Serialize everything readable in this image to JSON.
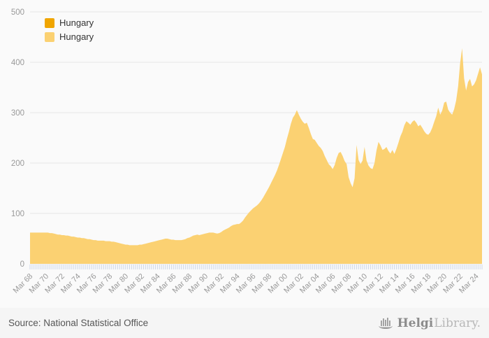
{
  "page": {
    "background": "#fafafa"
  },
  "legend": {
    "items": [
      {
        "label": "Hungary",
        "color": "#f0a500"
      },
      {
        "label": "Hungary",
        "color": "#fbd172"
      }
    ]
  },
  "footer": {
    "source": "Source: National Statistical Office",
    "brand_bold": "Helgi",
    "brand_light": "Library."
  },
  "chart_data": {
    "type": "area",
    "title": "",
    "xlabel": "",
    "ylabel": "",
    "frequency": "quarterly",
    "x_start": "Mar 1968",
    "x_end": "Dec 2024",
    "ylim": [
      0,
      500
    ],
    "y_ticks": [
      0,
      100,
      200,
      300,
      400,
      500
    ],
    "grid": "horizontal",
    "legend_position": "top-left",
    "x_tick_labels": [
      "Mar 68",
      "Mar 70",
      "Mar 72",
      "Mar 74",
      "Mar 76",
      "Mar 78",
      "Mar 80",
      "Mar 82",
      "Mar 84",
      "Mar 86",
      "Mar 88",
      "Mar 90",
      "Mar 92",
      "Mar 94",
      "Mar 96",
      "Mar 98",
      "Mar 00",
      "Mar 02",
      "Mar 04",
      "Mar 06",
      "Mar 08",
      "Mar 10",
      "Mar 12",
      "Mar 14",
      "Mar 16",
      "Mar 18",
      "Mar 20",
      "Mar 22",
      "Mar 24"
    ],
    "x_label_every_n_points": 8,
    "series": [
      {
        "name": "Hungary",
        "color": "#fbd172",
        "values": [
          62,
          62,
          62,
          62,
          62,
          62,
          62,
          62,
          62,
          62,
          61,
          61,
          60,
          59,
          58,
          58,
          57,
          57,
          56,
          56,
          55,
          54,
          54,
          53,
          52,
          52,
          51,
          51,
          50,
          49,
          49,
          48,
          47,
          47,
          46,
          46,
          46,
          46,
          45,
          45,
          45,
          44,
          44,
          43,
          42,
          41,
          40,
          39,
          38,
          38,
          37,
          37,
          37,
          37,
          37,
          38,
          38,
          39,
          40,
          41,
          42,
          43,
          44,
          45,
          46,
          47,
          48,
          49,
          50,
          50,
          49,
          48,
          48,
          47,
          47,
          47,
          47,
          48,
          49,
          51,
          52,
          54,
          56,
          57,
          58,
          57,
          58,
          59,
          60,
          61,
          62,
          62,
          62,
          61,
          60,
          61,
          63,
          66,
          68,
          70,
          72,
          75,
          77,
          78,
          79,
          79,
          82,
          86,
          92,
          97,
          102,
          106,
          110,
          113,
          116,
          120,
          125,
          131,
          138,
          145,
          152,
          160,
          168,
          176,
          185,
          196,
          208,
          220,
          232,
          248,
          262,
          278,
          290,
          296,
          305,
          296,
          288,
          282,
          278,
          280,
          270,
          258,
          248,
          246,
          240,
          234,
          230,
          224,
          214,
          206,
          198,
          194,
          188,
          196,
          210,
          220,
          222,
          214,
          204,
          198,
          172,
          160,
          152,
          170,
          236,
          206,
          198,
          205,
          232,
          205,
          195,
          190,
          188,
          200,
          225,
          242,
          235,
          226,
          228,
          232,
          224,
          219,
          226,
          218,
          228,
          240,
          253,
          262,
          275,
          283,
          280,
          276,
          282,
          285,
          280,
          273,
          276,
          270,
          263,
          258,
          256,
          261,
          270,
          282,
          293,
          310,
          296,
          304,
          320,
          322,
          306,
          300,
          296,
          307,
          324,
          352,
          398,
          428,
          368,
          344,
          361,
          367,
          352,
          356,
          364,
          377,
          390,
          376
        ]
      }
    ],
    "hidden_series_legend_only": {
      "name": "Hungary",
      "color": "#f0a500"
    }
  },
  "style": {
    "grid_color": "#e6e6e6",
    "axis_label_color": "#999999",
    "tick_color": "#ccd6e8",
    "plot_bg": "#fafafa"
  }
}
